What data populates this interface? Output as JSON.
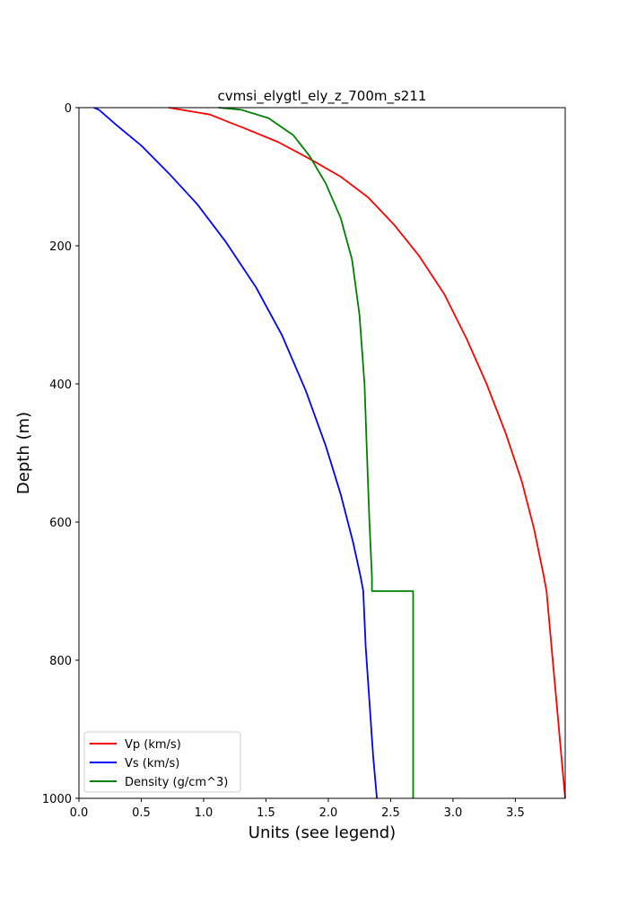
{
  "chart_data": {
    "type": "line",
    "title": "cvmsi_elygtl_ely_z_700m_s211",
    "xlabel": "Units (see legend)",
    "ylabel": "Depth (m)",
    "xlim": [
      0.0,
      3.9
    ],
    "ylim": [
      1000,
      0
    ],
    "y_inverted": true,
    "grid": false,
    "legend_position": "lower-left",
    "x_ticks": [
      "0.0",
      "0.5",
      "1.0",
      "1.5",
      "2.0",
      "2.5",
      "3.0",
      "3.5"
    ],
    "y_ticks": [
      "0",
      "200",
      "400",
      "600",
      "800",
      "1000"
    ],
    "series": [
      {
        "name": "Vp (km/s)",
        "color": "#ff0000",
        "x": [
          0.72,
          1.05,
          1.33,
          1.6,
          1.86,
          2.1,
          2.32,
          2.53,
          2.73,
          2.93,
          3.11,
          3.27,
          3.42,
          3.55,
          3.65,
          3.73,
          3.75,
          3.79,
          3.83,
          3.87,
          3.9
        ],
        "y": [
          0,
          10,
          30,
          50,
          75,
          100,
          130,
          170,
          215,
          270,
          335,
          400,
          470,
          540,
          610,
          680,
          700,
          780,
          860,
          940,
          1000
        ]
      },
      {
        "name": "Vs (km/s)",
        "color": "#0000ff",
        "x": [
          0.12,
          0.16,
          0.3,
          0.5,
          0.72,
          0.95,
          1.18,
          1.42,
          1.63,
          1.82,
          1.98,
          2.1,
          2.2,
          2.26,
          2.28,
          2.3,
          2.33,
          2.36,
          2.39
        ],
        "y": [
          0,
          3,
          25,
          55,
          95,
          140,
          195,
          260,
          330,
          410,
          490,
          560,
          630,
          680,
          700,
          780,
          860,
          940,
          1000
        ]
      },
      {
        "name": "Density (g/cm^3)",
        "color": "#008000",
        "x": [
          1.12,
          1.3,
          1.52,
          1.72,
          1.85,
          1.98,
          2.1,
          2.19,
          2.25,
          2.29,
          2.31,
          2.33,
          2.35,
          2.35,
          2.68,
          2.68,
          2.68
        ],
        "y": [
          0,
          3,
          15,
          40,
          70,
          110,
          160,
          220,
          300,
          400,
          500,
          600,
          680,
          700,
          700,
          850,
          1000
        ]
      }
    ]
  }
}
